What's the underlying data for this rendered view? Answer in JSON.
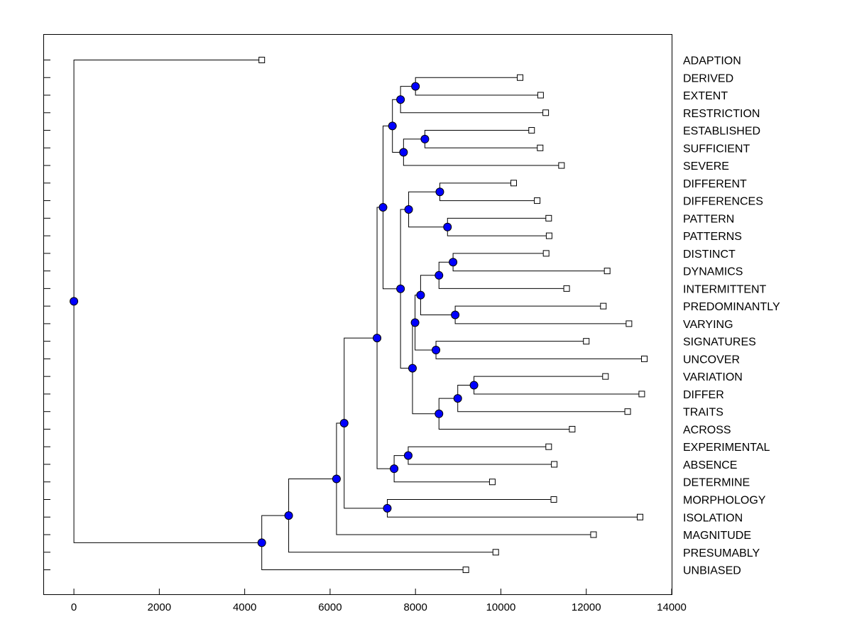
{
  "chart_data": {
    "type": "dendrogram",
    "title": "",
    "xlabel": "",
    "ylabel": "",
    "xlim": [
      -700,
      14000
    ],
    "xticks": [
      0,
      2000,
      4000,
      6000,
      8000,
      10000,
      12000,
      14000
    ],
    "tick_labels": [
      "0",
      "2000",
      "4000",
      "6000",
      "8000",
      "10000",
      "12000",
      "14000"
    ],
    "grid": false,
    "node_color": "#0000ff",
    "leaf_marker_color": "#ffffff",
    "leaves": [
      {
        "label": "ADAPTION",
        "x": 4400
      },
      {
        "label": "DERIVED",
        "x": 10450
      },
      {
        "label": "EXTENT",
        "x": 10930
      },
      {
        "label": "RESTRICTION",
        "x": 11050
      },
      {
        "label": "ESTABLISHED",
        "x": 10720
      },
      {
        "label": "SUFFICIENT",
        "x": 10920
      },
      {
        "label": "SEVERE",
        "x": 11420
      },
      {
        "label": "DIFFERENT",
        "x": 10300
      },
      {
        "label": "DIFFERENCES",
        "x": 10850
      },
      {
        "label": "PATTERN",
        "x": 11120
      },
      {
        "label": "PATTERNS",
        "x": 11130
      },
      {
        "label": "DISTINCT",
        "x": 11060
      },
      {
        "label": "DYNAMICS",
        "x": 12490
      },
      {
        "label": "INTERMITTENT",
        "x": 11540
      },
      {
        "label": "PREDOMINANTLY",
        "x": 12400
      },
      {
        "label": "VARYING",
        "x": 13000
      },
      {
        "label": "SIGNATURES",
        "x": 12000
      },
      {
        "label": "UNCOVER",
        "x": 13360
      },
      {
        "label": "VARIATION",
        "x": 12450
      },
      {
        "label": "DIFFER",
        "x": 13300
      },
      {
        "label": "TRAITS",
        "x": 12970
      },
      {
        "label": "ACROSS",
        "x": 11670
      },
      {
        "label": "EXPERIMENTAL",
        "x": 11120
      },
      {
        "label": "ABSENCE",
        "x": 11250
      },
      {
        "label": "DETERMINE",
        "x": 9800
      },
      {
        "label": "MORPHOLOGY",
        "x": 11240
      },
      {
        "label": "ISOLATION",
        "x": 13260
      },
      {
        "label": "MAGNITUDE",
        "x": 12170
      },
      {
        "label": "PRESUMABLY",
        "x": 9880
      },
      {
        "label": "UNBIASED",
        "x": 9180
      }
    ],
    "merges": [
      {
        "id": "n1",
        "x": 8000,
        "children": [
          1,
          2
        ]
      },
      {
        "id": "n2",
        "x": 7650,
        "children": [
          "n1",
          3
        ]
      },
      {
        "id": "n3",
        "x": 8220,
        "children": [
          4,
          5
        ]
      },
      {
        "id": "n4",
        "x": 7720,
        "children": [
          "n3",
          6
        ]
      },
      {
        "id": "n5",
        "x": 7460,
        "children": [
          "n2",
          "n4"
        ]
      },
      {
        "id": "n6",
        "x": 8570,
        "children": [
          7,
          8
        ]
      },
      {
        "id": "n7",
        "x": 8750,
        "children": [
          9,
          10
        ]
      },
      {
        "id": "n8",
        "x": 7840,
        "children": [
          "n6",
          "n7"
        ]
      },
      {
        "id": "n9",
        "x": 8880,
        "children": [
          11,
          12
        ]
      },
      {
        "id": "n10",
        "x": 8550,
        "children": [
          "n9",
          13
        ]
      },
      {
        "id": "n11",
        "x": 8930,
        "children": [
          14,
          15
        ]
      },
      {
        "id": "n12",
        "x": 8120,
        "children": [
          "n10",
          "n11"
        ]
      },
      {
        "id": "n13",
        "x": 8480,
        "children": [
          16,
          17
        ]
      },
      {
        "id": "n14",
        "x": 7990,
        "children": [
          "n12",
          "n13"
        ]
      },
      {
        "id": "n15",
        "x": 9370,
        "children": [
          18,
          19
        ]
      },
      {
        "id": "n16",
        "x": 8990,
        "children": [
          "n15",
          20
        ]
      },
      {
        "id": "n17",
        "x": 8550,
        "children": [
          "n16",
          21
        ]
      },
      {
        "id": "n18",
        "x": 7930,
        "children": [
          "n14",
          "n17"
        ]
      },
      {
        "id": "n19",
        "x": 7650,
        "children": [
          "n8",
          "n18"
        ]
      },
      {
        "id": "n20",
        "x": 7240,
        "children": [
          "n5",
          "n19"
        ]
      },
      {
        "id": "n21",
        "x": 7830,
        "children": [
          22,
          23
        ]
      },
      {
        "id": "n22",
        "x": 7500,
        "children": [
          "n21",
          24
        ]
      },
      {
        "id": "n23",
        "x": 7100,
        "children": [
          "n20",
          "n22"
        ]
      },
      {
        "id": "n24",
        "x": 7340,
        "children": [
          25,
          26
        ]
      },
      {
        "id": "n25",
        "x": 6330,
        "children": [
          "n23",
          "n24"
        ]
      },
      {
        "id": "n26",
        "x": 6150,
        "children": [
          "n25",
          27
        ]
      },
      {
        "id": "n27",
        "x": 5030,
        "children": [
          "n26",
          28
        ]
      },
      {
        "id": "n28",
        "x": 4400,
        "children": [
          "n27",
          29
        ]
      },
      {
        "id": "n29",
        "x": 0,
        "children": [
          0,
          "n28"
        ]
      }
    ]
  }
}
